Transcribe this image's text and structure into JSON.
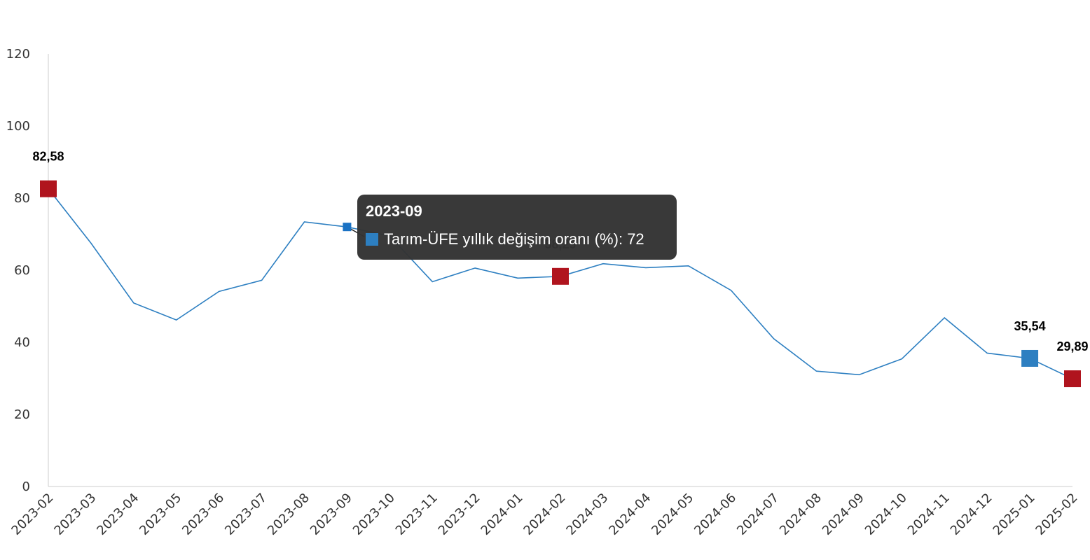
{
  "chart_data": {
    "type": "line",
    "title": "",
    "xlabel": "",
    "ylabel": "",
    "ylim": [
      0,
      120
    ],
    "yticks": [
      0,
      20,
      40,
      60,
      80,
      100,
      120
    ],
    "grid": false,
    "categories": [
      "2023-02",
      "2023-03",
      "2023-04",
      "2023-05",
      "2023-06",
      "2023-07",
      "2023-08",
      "2023-09",
      "2023-10",
      "2023-11",
      "2023-12",
      "2024-01",
      "2024-02",
      "2024-03",
      "2024-04",
      "2024-05",
      "2024-06",
      "2024-07",
      "2024-08",
      "2024-09",
      "2024-10",
      "2024-11",
      "2024-12",
      "2025-01",
      "2025-02"
    ],
    "series": [
      {
        "name": "Tarım-ÜFE yıllık değişim oranı (%)",
        "values": [
          82.58,
          67.5,
          50.9,
          46.2,
          54.1,
          57.2,
          73.4,
          72,
          69.5,
          56.8,
          60.6,
          57.8,
          58.29,
          61.8,
          60.7,
          61.2,
          54.4,
          41.0,
          32.0,
          31.0,
          35.4,
          46.8,
          37.0,
          35.54,
          29.89
        ]
      }
    ],
    "highlighted_points": [
      {
        "category": "2023-02",
        "label": "82,58",
        "color": "#b0141e"
      },
      {
        "category": "2024-02",
        "label": "58,29",
        "color": "#b0141e"
      },
      {
        "category": "2025-01",
        "label": "35,54",
        "color": "#2d7fc1"
      },
      {
        "category": "2025-02",
        "label": "29,89",
        "color": "#b0141e"
      }
    ],
    "colors": {
      "line": "#2d7fc1",
      "highlight_red": "#b0141e",
      "highlight_blue": "#2d7fc1",
      "active_point": "#1a72c4"
    }
  },
  "tooltip": {
    "title": "2023-09",
    "series_label": "Tarım-ÜFE yıllık değişim oranı (%)",
    "value": "72",
    "swatch_color": "#2d7fc1"
  }
}
